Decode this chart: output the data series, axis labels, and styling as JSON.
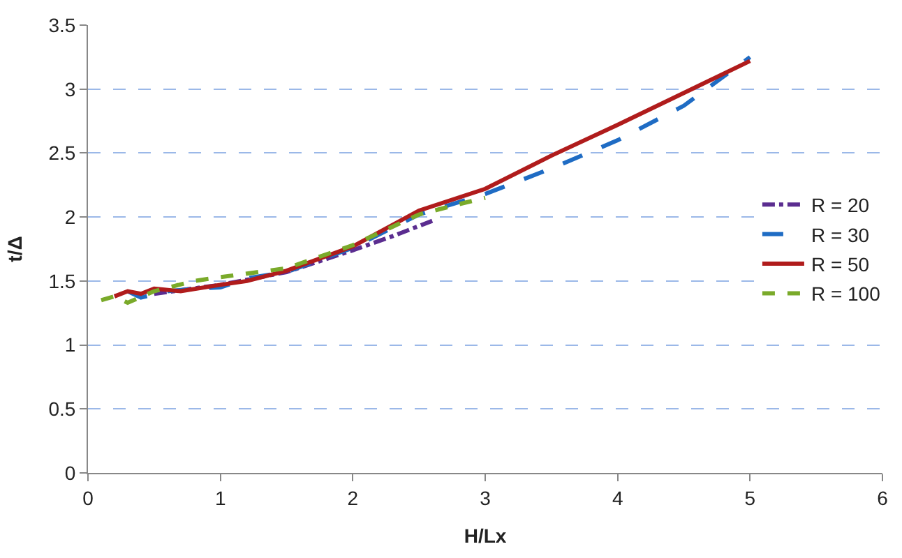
{
  "chart_data": {
    "type": "line",
    "xlabel": "H/Lx",
    "ylabel": "t/Δ",
    "xlim": [
      0,
      6
    ],
    "xticks": [
      0,
      1,
      2,
      3,
      4,
      5,
      6
    ],
    "ylim": [
      0,
      3.5
    ],
    "yticks": [
      0,
      0.5,
      1,
      1.5,
      2,
      2.5,
      3,
      3.5
    ],
    "grid": "y",
    "legend": "right",
    "marker": "none",
    "series": [
      {
        "name": "R = 20",
        "color": "#5b2d90",
        "line_style": "dashdot",
        "x": [
          0.5,
          1.0,
          1.5,
          2.0,
          2.3,
          2.6
        ],
        "values": [
          1.4,
          1.47,
          1.57,
          1.74,
          1.85,
          1.97
        ]
      },
      {
        "name": "R = 30",
        "color": "#1f6cc4",
        "line_style": "longdash",
        "x": [
          0.3,
          0.4,
          0.6,
          0.8,
          1.0,
          1.2,
          1.5,
          2.0,
          2.5,
          3.0,
          3.5,
          4.0,
          4.5,
          5.0
        ],
        "values": [
          1.42,
          1.37,
          1.42,
          1.44,
          1.45,
          1.52,
          1.57,
          1.76,
          2.02,
          2.18,
          2.38,
          2.6,
          2.87,
          3.25
        ]
      },
      {
        "name": "R = 50",
        "color": "#b01c1c",
        "line_style": "solid",
        "x": [
          0.2,
          0.3,
          0.4,
          0.5,
          0.7,
          1.0,
          1.2,
          1.5,
          2.0,
          2.5,
          3.0,
          3.5,
          4.0,
          4.5,
          5.0
        ],
        "values": [
          1.38,
          1.42,
          1.4,
          1.44,
          1.42,
          1.47,
          1.5,
          1.58,
          1.77,
          2.05,
          2.22,
          2.48,
          2.72,
          2.97,
          3.22
        ]
      },
      {
        "name": "R = 100",
        "color": "#7aaa2a",
        "line_style": "dashed",
        "x": [
          0.1,
          0.2,
          0.3,
          0.5,
          0.8,
          1.0,
          1.5,
          2.0,
          2.5,
          2.8,
          3.0
        ],
        "values": [
          1.35,
          1.38,
          1.33,
          1.42,
          1.5,
          1.53,
          1.6,
          1.78,
          2.02,
          2.1,
          2.15
        ]
      }
    ]
  }
}
